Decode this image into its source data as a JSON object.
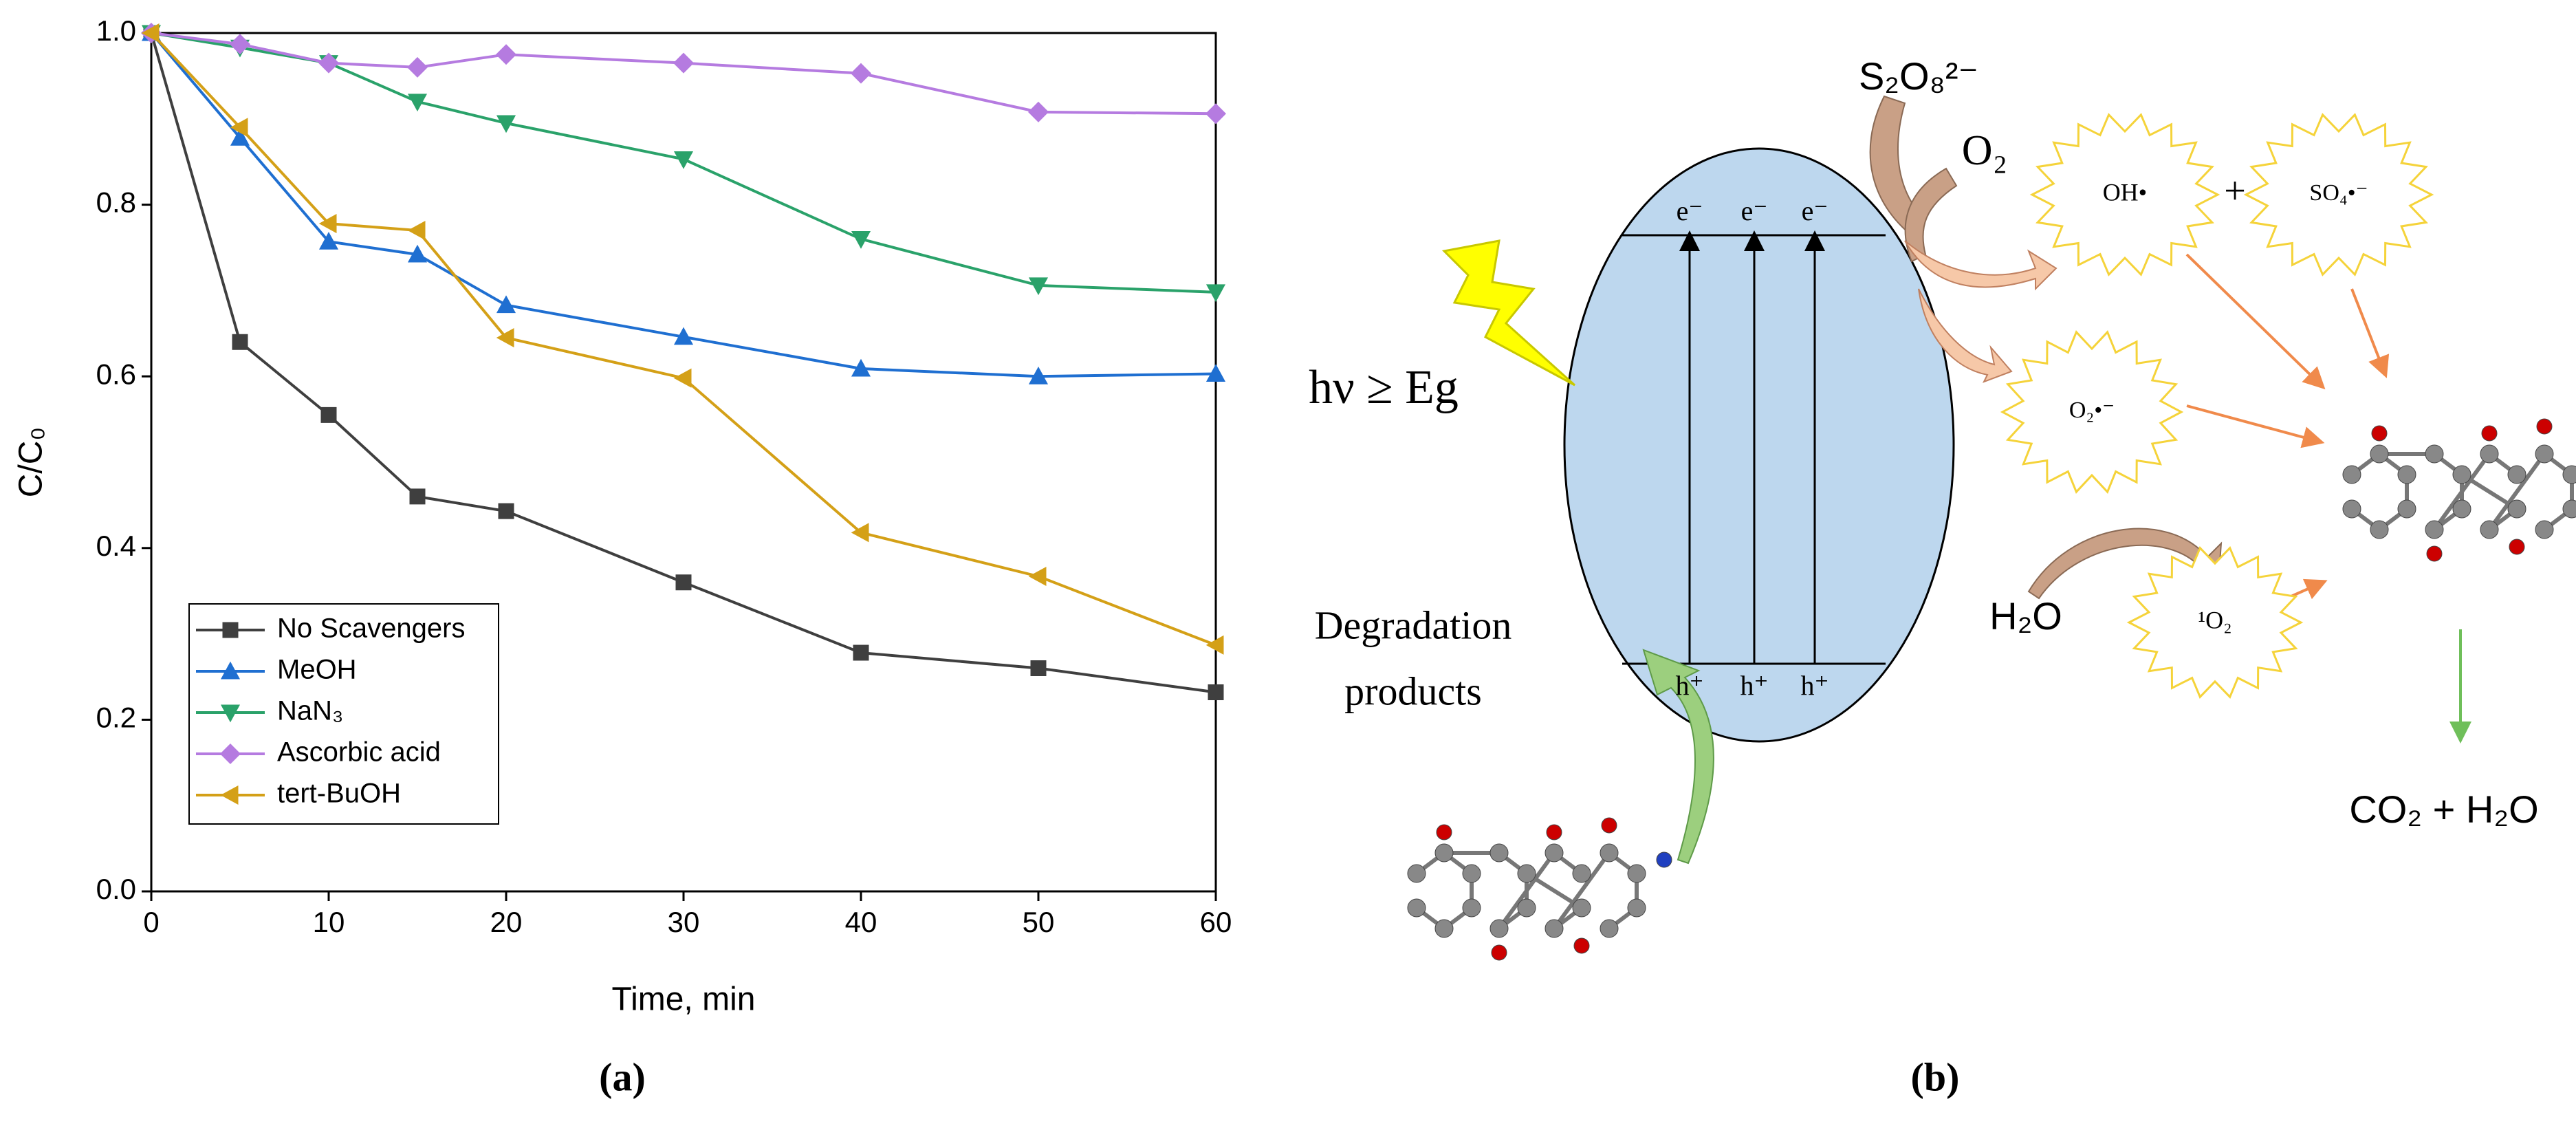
{
  "chart_data": {
    "type": "line",
    "xlabel": "Time, min",
    "ylabel": "C/C₀",
    "x": [
      0,
      5,
      10,
      15,
      20,
      30,
      40,
      50,
      60
    ],
    "series": [
      {
        "name": "No Scavengers",
        "color": "#3f3f3f",
        "marker": "square",
        "values": [
          1.0,
          0.64,
          0.555,
          0.46,
          0.443,
          0.36,
          0.278,
          0.26,
          0.232
        ]
      },
      {
        "name": "MeOH",
        "color": "#1f6fd1",
        "marker": "triangle-up",
        "values": [
          1.0,
          0.878,
          0.757,
          0.742,
          0.683,
          0.646,
          0.609,
          0.6,
          0.603
        ]
      },
      {
        "name": "NaN₃",
        "color": "#2aa26a",
        "marker": "triangle-down",
        "values": [
          1.0,
          0.983,
          0.965,
          0.92,
          0.895,
          0.853,
          0.76,
          0.706,
          0.698
        ]
      },
      {
        "name": "Ascorbic acid",
        "color": "#b57be0",
        "marker": "diamond",
        "values": [
          1.0,
          0.987,
          0.965,
          0.96,
          0.975,
          0.965,
          0.953,
          0.908,
          0.906
        ]
      },
      {
        "name": "tert-BuOH",
        "color": "#d4a017",
        "marker": "triangle-left",
        "values": [
          1.0,
          0.89,
          0.778,
          0.77,
          0.645,
          0.598,
          0.418,
          0.367,
          0.287
        ]
      }
    ],
    "xlim": [
      0,
      60
    ],
    "xticks": [
      0,
      10,
      20,
      30,
      40,
      50,
      60
    ],
    "ylim": [
      0,
      1
    ],
    "yticks": [
      {
        "value": 0,
        "label": "0.0"
      },
      0.2,
      0.4,
      0.6,
      0.8,
      {
        "value": 1,
        "label": "1.0"
      }
    ],
    "grid": false,
    "legend": "lower left"
  },
  "diagram": {
    "energy_label": "hν ≥ Eg",
    "oxidant": "S₂O₈²⁻",
    "oxygen": "O₂",
    "electrons": [
      "e⁻",
      "e⁻",
      "e⁻"
    ],
    "holes": [
      "h⁺",
      "h⁺",
      "h⁺"
    ],
    "radicals": [
      "OH•",
      "SO₄•⁻",
      "O₂•⁻",
      "¹O₂"
    ],
    "plus": "+",
    "water": "H₂O",
    "degradation": [
      "Degradation",
      "products"
    ],
    "final_products": "CO₂ + H₂O"
  },
  "captions": [
    "(a)",
    "(b)"
  ]
}
